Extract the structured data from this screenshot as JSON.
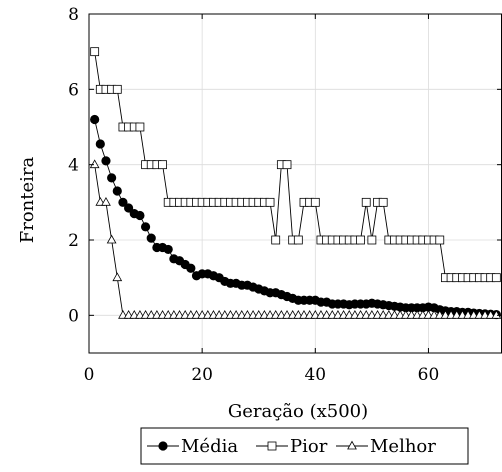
{
  "chart_data": {
    "type": "line",
    "title": "",
    "xlabel": "Geração (x500)",
    "ylabel": "Fronteira",
    "xlim": [
      0,
      73
    ],
    "ylim": [
      -1,
      8
    ],
    "xticks": [
      "0",
      "20",
      "40",
      "60"
    ],
    "yticks": [
      "0",
      "2",
      "4",
      "6",
      "8"
    ],
    "grid": true,
    "legend": "bottom",
    "series": [
      {
        "name": "Média",
        "marker": "filled-circle",
        "color": "#000000",
        "x": [
          1,
          2,
          3,
          4,
          5,
          6,
          7,
          8,
          9,
          10,
          11,
          12,
          13,
          14,
          15,
          16,
          17,
          18,
          19,
          20,
          21,
          22,
          23,
          24,
          25,
          26,
          27,
          28,
          29,
          30,
          31,
          32,
          33,
          34,
          35,
          36,
          37,
          38,
          39,
          40,
          41,
          42,
          43,
          44,
          45,
          46,
          47,
          48,
          49,
          50,
          51,
          52,
          53,
          54,
          55,
          56,
          57,
          58,
          59,
          60,
          61,
          62,
          63,
          64,
          65,
          66,
          67,
          68,
          69,
          70,
          71,
          72
        ],
        "y": [
          5.2,
          4.55,
          4.1,
          3.65,
          3.3,
          3.0,
          2.85,
          2.7,
          2.65,
          2.35,
          2.05,
          1.8,
          1.8,
          1.75,
          1.5,
          1.45,
          1.35,
          1.25,
          1.05,
          1.1,
          1.1,
          1.05,
          1.0,
          0.9,
          0.85,
          0.85,
          0.8,
          0.8,
          0.75,
          0.7,
          0.65,
          0.6,
          0.6,
          0.55,
          0.5,
          0.45,
          0.4,
          0.4,
          0.4,
          0.4,
          0.35,
          0.35,
          0.3,
          0.3,
          0.3,
          0.28,
          0.3,
          0.3,
          0.3,
          0.32,
          0.3,
          0.28,
          0.26,
          0.24,
          0.22,
          0.2,
          0.2,
          0.2,
          0.2,
          0.22,
          0.2,
          0.15,
          0.12,
          0.1,
          0.1,
          0.08,
          0.08,
          0.06,
          0.05,
          0.04,
          0.03,
          0.02
        ]
      },
      {
        "name": "Pior",
        "marker": "open-square",
        "color": "#000000",
        "x": [
          1,
          2,
          3,
          4,
          5,
          6,
          7,
          8,
          9,
          10,
          11,
          12,
          13,
          14,
          15,
          16,
          17,
          18,
          19,
          20,
          21,
          22,
          23,
          24,
          25,
          26,
          27,
          28,
          29,
          30,
          31,
          32,
          33,
          34,
          35,
          36,
          37,
          38,
          39,
          40,
          41,
          42,
          43,
          44,
          45,
          46,
          47,
          48,
          49,
          50,
          51,
          52,
          53,
          54,
          55,
          56,
          57,
          58,
          59,
          60,
          61,
          62,
          63,
          64,
          65,
          66,
          67,
          68,
          69,
          70,
          71,
          72
        ],
        "y": [
          7,
          6,
          6,
          6,
          6,
          5,
          5,
          5,
          5,
          4,
          4,
          4,
          4,
          3,
          3,
          3,
          3,
          3,
          3,
          3,
          3,
          3,
          3,
          3,
          3,
          3,
          3,
          3,
          3,
          3,
          3,
          3,
          2,
          4,
          4,
          2,
          2,
          3,
          3,
          3,
          2,
          2,
          2,
          2,
          2,
          2,
          2,
          2,
          3,
          2,
          3,
          3,
          2,
          2,
          2,
          2,
          2,
          2,
          2,
          2,
          2,
          2,
          1,
          1,
          1,
          1,
          1,
          1,
          1,
          1,
          1,
          1
        ]
      },
      {
        "name": "Melhor",
        "marker": "open-triangle",
        "color": "#000000",
        "x": [
          1,
          2,
          3,
          4,
          5,
          6,
          7,
          8,
          9,
          10,
          11,
          12,
          13,
          14,
          15,
          16,
          17,
          18,
          19,
          20,
          21,
          22,
          23,
          24,
          25,
          26,
          27,
          28,
          29,
          30,
          31,
          32,
          33,
          34,
          35,
          36,
          37,
          38,
          39,
          40,
          41,
          42,
          43,
          44,
          45,
          46,
          47,
          48,
          49,
          50,
          51,
          52,
          53,
          54,
          55,
          56,
          57,
          58,
          59,
          60,
          61,
          62,
          63,
          64,
          65,
          66,
          67,
          68,
          69,
          70,
          71,
          72
        ],
        "y": [
          4,
          3,
          3,
          2,
          1,
          0,
          0,
          0,
          0,
          0,
          0,
          0,
          0,
          0,
          0,
          0,
          0,
          0,
          0,
          0,
          0,
          0,
          0,
          0,
          0,
          0,
          0,
          0,
          0,
          0,
          0,
          0,
          0,
          0,
          0,
          0,
          0,
          0,
          0,
          0,
          0,
          0,
          0,
          0,
          0,
          0,
          0,
          0,
          0,
          0,
          0,
          0,
          0,
          0,
          0,
          0,
          0,
          0,
          0,
          0,
          0,
          0,
          0,
          0,
          0,
          0,
          0,
          0,
          0,
          0,
          0,
          0
        ]
      }
    ]
  }
}
